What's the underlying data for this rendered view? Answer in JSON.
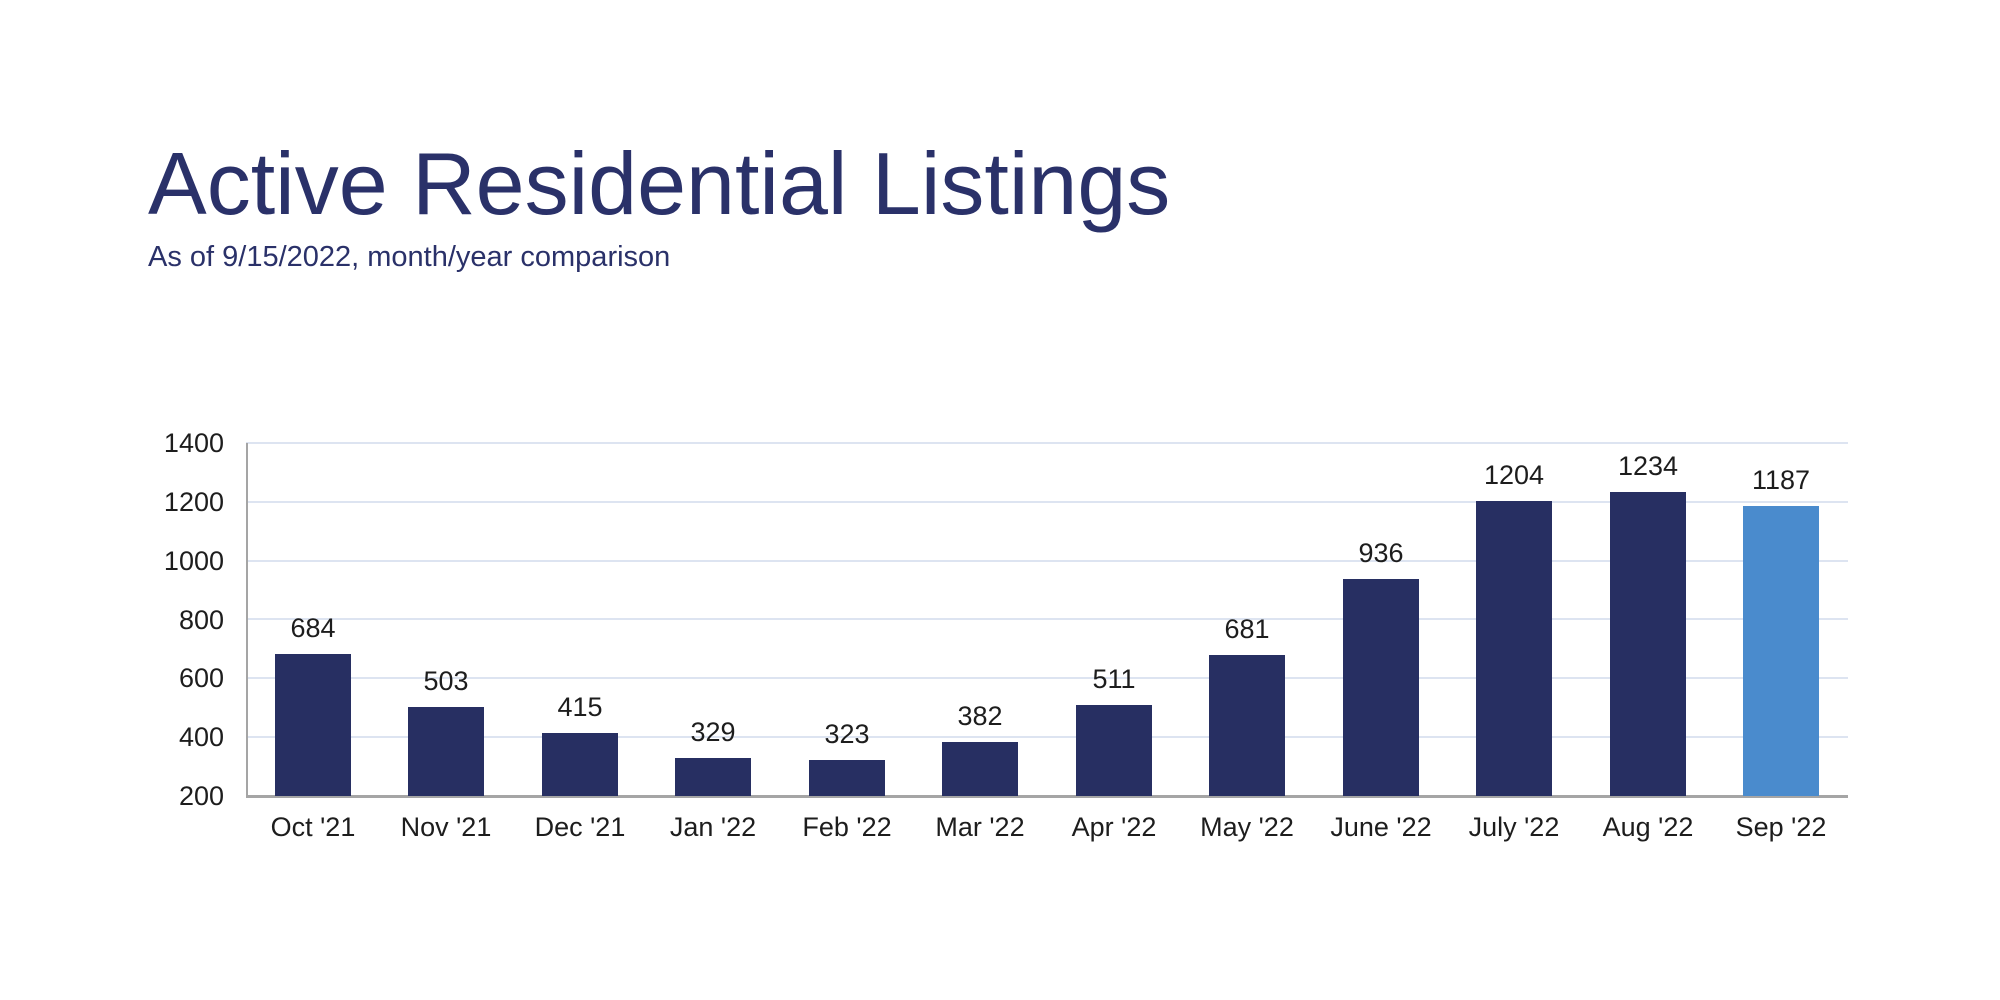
{
  "header": {
    "title": "Active Residential Listings",
    "subtitle": "As of 9/15/2022, month/year comparison"
  },
  "colors": {
    "background": "#ffffff",
    "title_text": "#2a3169",
    "subtitle_text": "#2a3169",
    "bar_default": "#272f62",
    "bar_highlight": "#4a8bcd",
    "gridline": "#dde4f1",
    "axis_line": "#a5a5a5",
    "label_text": "#1d1d1d"
  },
  "chart_data": {
    "type": "bar",
    "title": "Active Residential Listings",
    "subtitle": "As of 9/15/2022, month/year comparison",
    "categories": [
      "Oct '21",
      "Nov '21",
      "Dec '21",
      "Jan '22",
      "Feb '22",
      "Mar '22",
      "Apr '22",
      "May '22",
      "June '22",
      "July '22",
      "Aug '22",
      "Sep '22"
    ],
    "values": [
      684,
      503,
      415,
      329,
      323,
      382,
      511,
      681,
      936,
      1204,
      1234,
      1187
    ],
    "data_labels": [
      "684",
      "503",
      "415",
      "329",
      "323",
      "382",
      "511",
      "681",
      "936",
      "1204",
      "1234",
      "1187"
    ],
    "highlight_index": 11,
    "xlabel": "",
    "ylabel": "",
    "ylim": [
      200,
      1400
    ],
    "yticks": [
      200,
      400,
      600,
      800,
      1000,
      1200,
      1400
    ],
    "grid": true,
    "legend": false
  }
}
